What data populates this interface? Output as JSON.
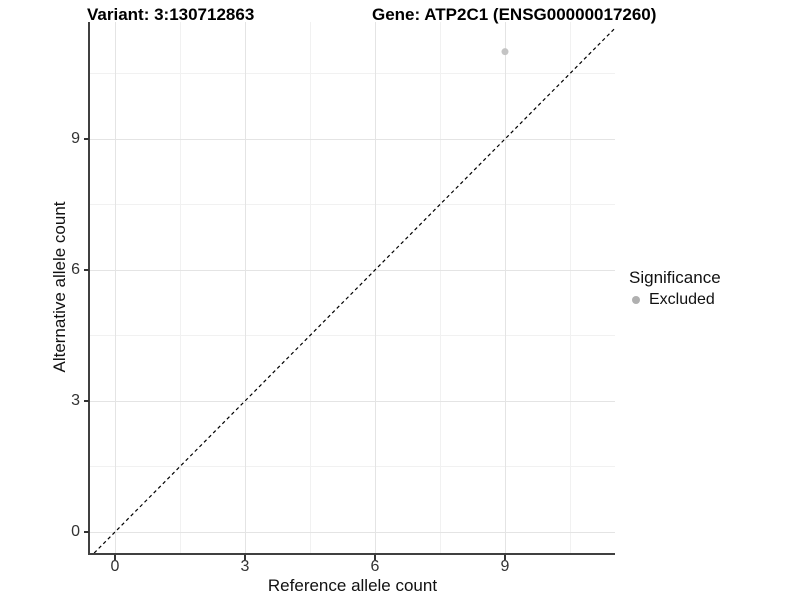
{
  "header": {
    "title_left": "Variant: 3:130712863",
    "title_right": "Gene: ATP2C1 (ENSG00000017260)"
  },
  "chart_data": {
    "type": "scatter",
    "title": "Variant: 3:130712863  /  Gene: ATP2C1 (ENSG00000017260)",
    "xlabel": "Reference allele count",
    "ylabel": "Alternative allele count",
    "x_ticks": [
      "0",
      "3",
      "6",
      "9"
    ],
    "y_ticks": [
      "0",
      "3",
      "6",
      "9"
    ],
    "x_tick_values": [
      0,
      3,
      6,
      9
    ],
    "y_tick_values": [
      0,
      3,
      6,
      9
    ],
    "xlim": [
      -0.58,
      11.55
    ],
    "ylim": [
      -0.48,
      11.68
    ],
    "grid": "major and minor, light gray on white",
    "reference_line": {
      "type": "identity y=x",
      "style": "dashed",
      "color": "#000000"
    },
    "series": [
      {
        "name": "Excluded",
        "color": "#c4c4c4",
        "points": [
          {
            "x": 9,
            "y": 11
          }
        ]
      }
    ],
    "legend": {
      "title": "Significance",
      "position": "right",
      "entries": [
        {
          "label": "Excluded",
          "color": "#b0b0b0"
        }
      ]
    }
  }
}
